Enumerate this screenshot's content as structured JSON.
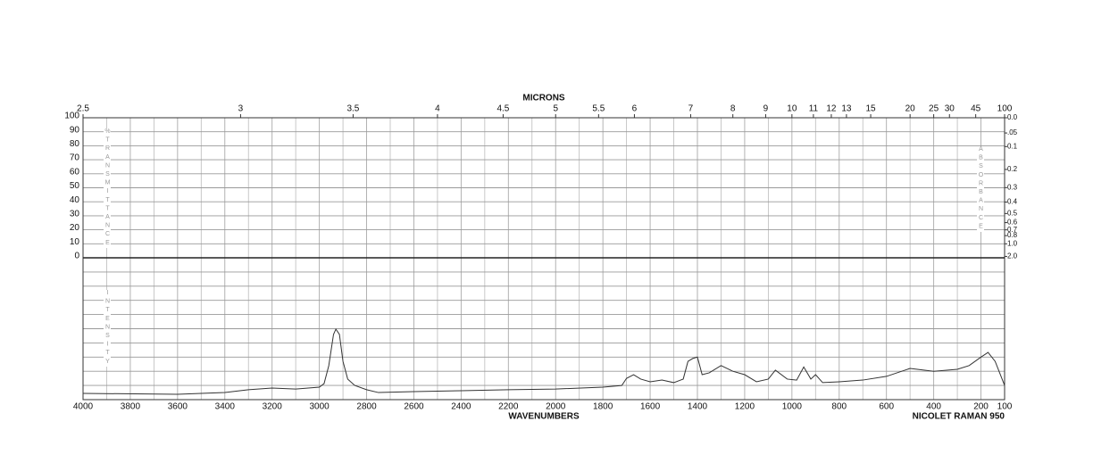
{
  "chart_data": {
    "type": "line",
    "x2_label": "MICRONS",
    "x_label": "WAVENUMBERS",
    "annotation": "NICOLET RAMAN 950",
    "y_label": "%TRANSMITTANCE",
    "y2_label": "ABSORBANCE",
    "intensity_label": "INTENSITY",
    "xlim": [
      4000,
      100
    ],
    "xticks": [
      4000,
      3800,
      3600,
      3400,
      3200,
      3000,
      2800,
      2600,
      2400,
      2200,
      2000,
      1800,
      1600,
      1400,
      1200,
      1000,
      800,
      600,
      400,
      200,
      100
    ],
    "x_minor_ticks": [
      3900,
      3700,
      3500,
      3300,
      3100,
      2900,
      2700,
      2500,
      2300,
      2100,
      1900,
      1700,
      1500,
      1300,
      1100,
      900,
      700,
      500,
      300
    ],
    "x2ticks": [
      2.5,
      3,
      3.5,
      4,
      4.5,
      5,
      5.5,
      6,
      7,
      8,
      9,
      10,
      11,
      12,
      13,
      15,
      20,
      25,
      30,
      45,
      100
    ],
    "ylim": [
      0,
      100
    ],
    "yticks": [
      0,
      10,
      20,
      30,
      40,
      50,
      60,
      70,
      80,
      90,
      100
    ],
    "y2_scale": "absorbance",
    "y2ticks": [
      {
        "value": 0,
        "label": "0.0"
      },
      {
        "value": 0.05,
        "label": ".05"
      },
      0.1,
      0.2,
      0.3,
      0.4,
      0.5,
      0.6,
      0.7,
      0.8,
      {
        "value": 1,
        "label": "1.0"
      },
      {
        "value": 2,
        "label": "2.0"
      }
    ],
    "intensity_lim": [
      0,
      100
    ],
    "intensity_grid": [
      0,
      10,
      20,
      30,
      40,
      50,
      60,
      70,
      80,
      90,
      100
    ],
    "color": "#333333",
    "x": [
      4000,
      3600,
      3400,
      3300,
      3200,
      3100,
      3000,
      2980,
      2960,
      2940,
      2930,
      2915,
      2900,
      2880,
      2850,
      2800,
      2750,
      2600,
      2400,
      2200,
      2000,
      1800,
      1720,
      1700,
      1670,
      1640,
      1600,
      1550,
      1500,
      1460,
      1440,
      1420,
      1400,
      1380,
      1350,
      1300,
      1250,
      1200,
      1150,
      1100,
      1070,
      1020,
      980,
      950,
      920,
      900,
      870,
      800,
      700,
      600,
      500,
      400,
      300,
      250,
      200,
      170,
      140,
      100
    ],
    "values": [
      4.4,
      3.8,
      5,
      7,
      8.2,
      7.5,
      8.8,
      11.3,
      24,
      46,
      49.7,
      46,
      27,
      14.5,
      10,
      7,
      5,
      5.7,
      6.3,
      7,
      7.5,
      8.8,
      10,
      15,
      17.6,
      14.5,
      12.6,
      13.8,
      12,
      14.5,
      27,
      29,
      30,
      17.6,
      18.9,
      24,
      20,
      17.6,
      12.6,
      14.5,
      20.8,
      14.5,
      13.8,
      23,
      14.5,
      17.6,
      12,
      12.6,
      13.8,
      16.4,
      22,
      20,
      21.4,
      24,
      30,
      33.3,
      27,
      10
    ]
  }
}
